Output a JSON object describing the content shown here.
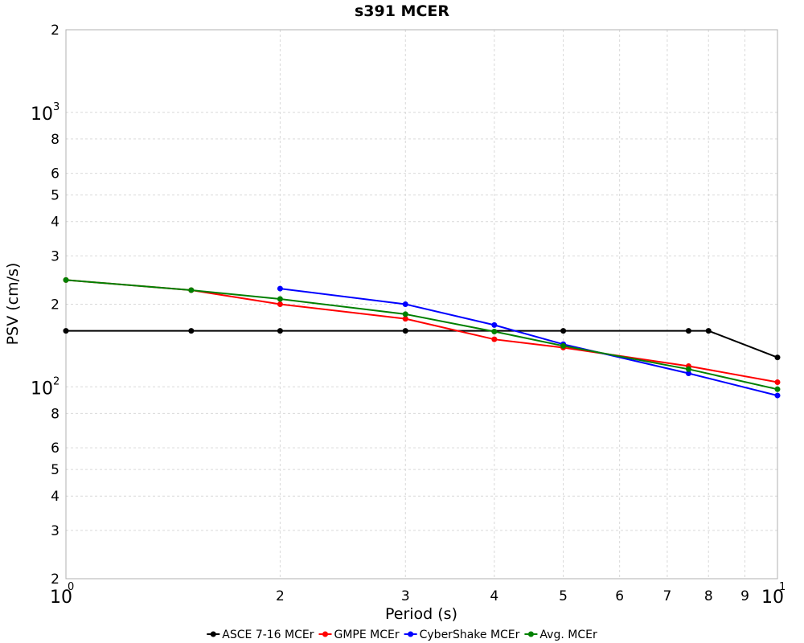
{
  "chart_data": {
    "type": "line",
    "title": "s391 MCER",
    "xlabel": "Period (s)",
    "ylabel": "PSV (cm/s)",
    "x_scale": "log",
    "y_scale": "log",
    "xlim": [
      1,
      10
    ],
    "ylim": [
      20,
      2000
    ],
    "grid": true,
    "legend_position": "bottom",
    "x_ticks": [
      {
        "value": 1,
        "base": "10",
        "exp": "0"
      },
      {
        "value": 2,
        "base": "2",
        "exp": ""
      },
      {
        "value": 3,
        "base": "3",
        "exp": ""
      },
      {
        "value": 4,
        "base": "4",
        "exp": ""
      },
      {
        "value": 5,
        "base": "5",
        "exp": ""
      },
      {
        "value": 6,
        "base": "6",
        "exp": ""
      },
      {
        "value": 7,
        "base": "7",
        "exp": ""
      },
      {
        "value": 8,
        "base": "8",
        "exp": ""
      },
      {
        "value": 9,
        "base": "9",
        "exp": ""
      },
      {
        "value": 10,
        "base": "10",
        "exp": "1"
      }
    ],
    "y_ticks": [
      {
        "value": 20,
        "base": "2",
        "exp": ""
      },
      {
        "value": 30,
        "base": "3",
        "exp": ""
      },
      {
        "value": 40,
        "base": "4",
        "exp": ""
      },
      {
        "value": 50,
        "base": "5",
        "exp": ""
      },
      {
        "value": 60,
        "base": "6",
        "exp": ""
      },
      {
        "value": 80,
        "base": "8",
        "exp": ""
      },
      {
        "value": 100,
        "base": "10",
        "exp": "2"
      },
      {
        "value": 200,
        "base": "2",
        "exp": ""
      },
      {
        "value": 300,
        "base": "3",
        "exp": ""
      },
      {
        "value": 400,
        "base": "4",
        "exp": ""
      },
      {
        "value": 500,
        "base": "5",
        "exp": ""
      },
      {
        "value": 600,
        "base": "6",
        "exp": ""
      },
      {
        "value": 800,
        "base": "8",
        "exp": ""
      },
      {
        "value": 1000,
        "base": "10",
        "exp": "3"
      },
      {
        "value": 2000,
        "base": "2",
        "exp": ""
      }
    ],
    "series": [
      {
        "name": "ASCE 7-16 MCEr",
        "color": "#000000",
        "x": [
          1,
          1.5,
          2,
          3,
          5,
          7.5,
          8,
          10
        ],
        "y": [
          160,
          160,
          160,
          160,
          160,
          160,
          160,
          128
        ]
      },
      {
        "name": "GMPE MCEr",
        "color": "#ff0000",
        "x": [
          1,
          1.5,
          2,
          3,
          4,
          5,
          7.5,
          10
        ],
        "y": [
          245,
          225,
          200,
          177,
          149,
          139,
          119,
          104
        ]
      },
      {
        "name": "CyberShake MCEr",
        "color": "#0000ff",
        "x": [
          2,
          3,
          4,
          5,
          7.5,
          10
        ],
        "y": [
          228,
          200,
          168,
          143,
          112,
          93
        ]
      },
      {
        "name": "Avg. MCEr",
        "color": "#008000",
        "x": [
          1,
          1.5,
          2,
          3,
          4,
          5,
          7.5,
          10
        ],
        "y": [
          245,
          225,
          209,
          184,
          159,
          141,
          116,
          98
        ]
      }
    ]
  }
}
